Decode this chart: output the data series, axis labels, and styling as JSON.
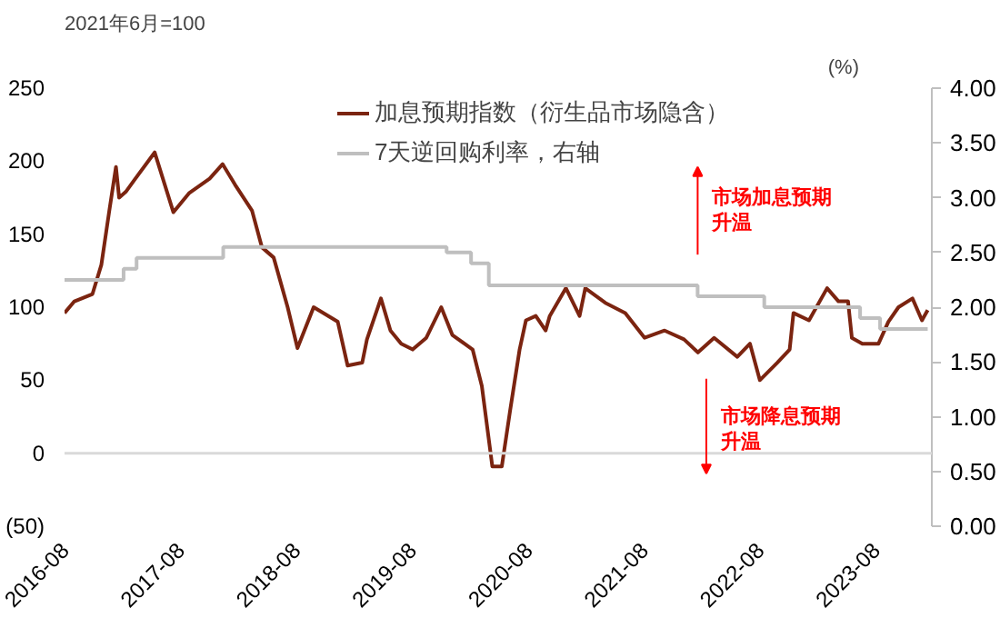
{
  "chart_data": {
    "type": "line",
    "ylabel": "2021年6月=100",
    "y2label": "(%)",
    "xlim": [
      "2016-08-01",
      "2024-01-25"
    ],
    "xticks": [
      {
        "value": "2016-08-01",
        "label": "2016-08"
      },
      {
        "value": "2017-08-01",
        "label": "2017-08"
      },
      {
        "value": "2018-08-01",
        "label": "2018-08"
      },
      {
        "value": "2019-08-01",
        "label": "2019-08"
      },
      {
        "value": "2020-08-01",
        "label": "2020-08"
      },
      {
        "value": "2021-08-01",
        "label": "2021-08"
      },
      {
        "value": "2022-08-01",
        "label": "2022-08"
      },
      {
        "value": "2023-08-01",
        "label": "2023-08"
      }
    ],
    "ylim": [
      -50,
      250
    ],
    "yticks": [
      {
        "value": -50,
        "label": "(50)"
      },
      0,
      50,
      100,
      150,
      200,
      250
    ],
    "y2lim": [
      0,
      4
    ],
    "y2ticks": [
      {
        "value": 0,
        "label": "0.00"
      },
      {
        "value": 0.5,
        "label": "0.50"
      },
      {
        "value": 1,
        "label": "1.00"
      },
      {
        "value": 1.5,
        "label": "1.50"
      },
      {
        "value": 2,
        "label": "2.00"
      },
      {
        "value": 2.5,
        "label": "2.50"
      },
      {
        "value": 3,
        "label": "3.00"
      },
      {
        "value": 3.5,
        "label": "3.50"
      },
      {
        "value": 4,
        "label": "4.00"
      }
    ],
    "legend": "top",
    "grid": false,
    "ref_lines": [
      {
        "axis": "y",
        "value": 0,
        "color": "#d9d9d9"
      }
    ],
    "annotations": [
      "市场加息预期升温",
      "市场降息预期升温"
    ],
    "series": [
      {
        "name": "加息预期指数（衍生品市场隐含）",
        "color": "#7b2410",
        "x": [
          "2016-08-01",
          "2016-09-01",
          "2016-10-28",
          "2016-11-25",
          "2016-12-20",
          "2017-01-10",
          "2017-01-20",
          "2017-02-10",
          "2017-03-12",
          "2017-05-12",
          "2017-07-10",
          "2017-08-28",
          "2017-11-01",
          "2017-12-12",
          "2018-01-20",
          "2018-03-15",
          "2018-04-15",
          "2018-05-22",
          "2018-07-05",
          "2018-08-05",
          "2018-09-25",
          "2018-12-10",
          "2019-01-10",
          "2019-02-25",
          "2019-03-12",
          "2019-04-25",
          "2019-05-25",
          "2019-06-28",
          "2019-08-03",
          "2019-09-15",
          "2019-11-01",
          "2019-12-06",
          "2020-02-08",
          "2020-03-08",
          "2020-04-10",
          "2020-05-10",
          "2020-06-05",
          "2020-07-05",
          "2020-07-25",
          "2020-08-25",
          "2020-09-25",
          "2020-10-08",
          "2020-11-28",
          "2021-01-10",
          "2021-01-28",
          "2021-04-01",
          "2021-06-03",
          "2021-08-03",
          "2021-10-05",
          "2021-12-05",
          "2022-01-18",
          "2022-03-10",
          "2022-05-22",
          "2022-07-01",
          "2022-08-01",
          "2022-09-25",
          "2022-11-03",
          "2022-11-15",
          "2023-01-03",
          "2023-03-01",
          "2023-04-06",
          "2023-05-06",
          "2023-05-18",
          "2023-06-20",
          "2023-08-10",
          "2023-09-10",
          "2023-10-12",
          "2023-11-25",
          "2023-12-25",
          "2024-01-12"
        ],
        "values": [
          96,
          104,
          109,
          129,
          166,
          196,
          175,
          179,
          188,
          206,
          165,
          178,
          188,
          198,
          184,
          166,
          141,
          134,
          100,
          72,
          100,
          90,
          60,
          62,
          78,
          106,
          84,
          75,
          71,
          79,
          100,
          81,
          71,
          46,
          -9,
          -9,
          29,
          71,
          91,
          94,
          84,
          94,
          113,
          94,
          113,
          103,
          96,
          79,
          84,
          78,
          69,
          79,
          66,
          75,
          50,
          62,
          71,
          96,
          91,
          113,
          104,
          104,
          79,
          75,
          75,
          90,
          100,
          106,
          91,
          98
        ]
      },
      {
        "name": "7天逆回购利率，右轴",
        "type": "step",
        "axis": "y2",
        "color": "#bfbfbf",
        "x": [
          "2016-08-01",
          "2017-02-03",
          "2017-03-16",
          "2017-12-14",
          "2019-11-18",
          "2020-02-03",
          "2020-03-30",
          "2022-01-17",
          "2022-08-15",
          "2023-06-13",
          "2023-08-15",
          "2024-01-12"
        ],
        "values": [
          2.25,
          2.35,
          2.45,
          2.55,
          2.5,
          2.4,
          2.2,
          2.1,
          2.0,
          1.9,
          1.8,
          1.8
        ]
      }
    ]
  }
}
